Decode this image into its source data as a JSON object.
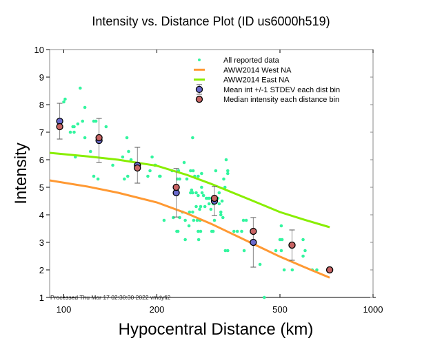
{
  "chart_data": {
    "type": "scatter",
    "title": "Intensity vs. Distance Plot (ID us6000h519)",
    "xlabel": "Hypocentral Distance (km)",
    "ylabel": "Intensity",
    "xscale": "log",
    "xlim": [
      90,
      1000
    ],
    "ylim": [
      1,
      10
    ],
    "xticks": [
      100,
      200,
      500,
      1000
    ],
    "xtick_labels": [
      "100",
      "200",
      "500",
      "1000"
    ],
    "yticks": [
      1,
      2,
      3,
      4,
      5,
      6,
      7,
      8,
      9,
      10
    ],
    "ytick_labels": [
      "1",
      "2",
      "3",
      "4",
      "5",
      "6",
      "7",
      "8",
      "9",
      "10"
    ],
    "legend_position": "top-right",
    "legend": [
      {
        "label": "All reported data",
        "kind": "dot"
      },
      {
        "label": "AWW2014 West NA",
        "kind": "line-west"
      },
      {
        "label": "AWW2014 East NA",
        "kind": "line-east"
      },
      {
        "label": "Mean int +/-1 STDEV each dist bin",
        "kind": "mean"
      },
      {
        "label": "Median intensity each distance bin",
        "kind": "median"
      }
    ],
    "footnote": "Processed Thu Mar 17 02:30:30 2022 vmdyfi2",
    "colors": {
      "data": "#33f59f",
      "west": "#ff9933",
      "east": "#88ee00",
      "mean": "#6a6acc",
      "median": "#c86464"
    },
    "all_reported_data": [
      [
        113,
        8.6
      ],
      [
        101,
        8.2
      ],
      [
        100,
        8.1
      ],
      [
        117,
        7.9
      ],
      [
        111,
        7.3
      ],
      [
        115,
        7.4
      ],
      [
        107,
        7.2
      ],
      [
        108,
        7.2
      ],
      [
        105,
        7.0
      ],
      [
        108,
        7.0
      ],
      [
        117,
        6.8
      ],
      [
        125,
        7.4
      ],
      [
        127,
        7.4
      ],
      [
        137,
        7.2
      ],
      [
        122,
        6.3
      ],
      [
        109,
        6.1
      ],
      [
        125,
        5.4
      ],
      [
        129,
        5.3
      ],
      [
        160,
        6.8
      ],
      [
        162,
        6.3
      ],
      [
        155,
        6.1
      ],
      [
        165,
        6.0
      ],
      [
        144,
        5.8
      ],
      [
        193,
        6.1
      ],
      [
        198,
        5.8
      ],
      [
        157,
        5.3
      ],
      [
        161,
        5.4
      ],
      [
        187,
        5.4
      ],
      [
        204,
        5.4
      ],
      [
        224,
        5.6
      ],
      [
        235,
        5.6
      ],
      [
        245,
        5.9
      ],
      [
        261,
        6.8
      ],
      [
        257,
        5.6
      ],
      [
        262,
        5.6
      ],
      [
        205,
        5.4
      ],
      [
        190,
        5.6
      ],
      [
        197,
        5.8
      ],
      [
        237,
        5.3
      ],
      [
        335,
        6.0
      ],
      [
        339,
        5.6
      ],
      [
        339,
        5.5
      ],
      [
        310,
        5.6
      ],
      [
        279,
        5.5
      ],
      [
        272,
        5.4
      ],
      [
        265,
        5.4
      ],
      [
        329,
        5.3
      ],
      [
        332,
        5.0
      ],
      [
        233,
        5.3
      ],
      [
        250,
        5.3
      ],
      [
        279,
        5.0
      ],
      [
        259,
        4.9
      ],
      [
        257,
        4.8
      ],
      [
        261,
        4.8
      ],
      [
        268,
        4.8
      ],
      [
        280,
        4.8
      ],
      [
        283,
        4.7
      ],
      [
        272,
        4.7
      ],
      [
        289,
        4.6
      ],
      [
        293,
        4.6
      ],
      [
        296,
        4.6
      ],
      [
        303,
        4.5
      ],
      [
        315,
        4.6
      ],
      [
        318,
        4.8
      ],
      [
        325,
        4.5
      ],
      [
        318,
        4.4
      ],
      [
        295,
        4.4
      ],
      [
        304,
        4.4
      ],
      [
        286,
        4.3
      ],
      [
        277,
        4.3
      ],
      [
        268,
        4.3
      ],
      [
        275,
        4.2
      ],
      [
        299,
        4.2
      ],
      [
        322,
        4.1
      ],
      [
        322,
        4.0
      ],
      [
        327,
        3.9
      ],
      [
        242,
        4.1
      ],
      [
        255,
        4.1
      ],
      [
        261,
        4.1
      ],
      [
        226,
        3.9
      ],
      [
        237,
        3.9
      ],
      [
        211,
        3.8
      ],
      [
        247,
        3.8
      ],
      [
        263,
        3.8
      ],
      [
        270,
        3.8
      ],
      [
        276,
        3.8
      ],
      [
        307,
        3.8
      ],
      [
        254,
        3.6
      ],
      [
        232,
        3.4
      ],
      [
        234,
        3.4
      ],
      [
        272,
        3.4
      ],
      [
        277,
        3.4
      ],
      [
        301,
        3.4
      ],
      [
        304,
        3.4
      ],
      [
        355,
        3.4
      ],
      [
        364,
        3.4
      ],
      [
        376,
        3.4
      ],
      [
        247,
        3.1
      ],
      [
        273,
        3.1
      ],
      [
        381,
        3.8
      ],
      [
        389,
        3.8
      ],
      [
        333,
        2.7
      ],
      [
        339,
        2.7
      ],
      [
        383,
        2.7
      ],
      [
        431,
        2.2
      ],
      [
        445,
        1.0
      ],
      [
        505,
        3.6
      ],
      [
        500,
        3.1
      ],
      [
        508,
        3.1
      ],
      [
        505,
        2.7
      ],
      [
        485,
        2.7
      ],
      [
        516,
        2.0
      ],
      [
        548,
        2.0
      ],
      [
        594,
        3.1
      ],
      [
        603,
        2.7
      ],
      [
        594,
        2.5
      ],
      [
        636,
        2.0
      ],
      [
        658,
        2.0
      ]
    ],
    "aww2014_west_na": {
      "x": [
        90,
        120,
        150,
        200,
        250,
        300,
        400,
        500,
        600,
        724
      ],
      "y": [
        5.25,
        5.02,
        4.8,
        4.45,
        4.05,
        3.67,
        3.0,
        2.48,
        2.1,
        1.72
      ]
    },
    "aww2014_east_na": {
      "x": [
        90,
        120,
        150,
        200,
        250,
        300,
        400,
        500,
        600,
        724
      ],
      "y": [
        6.25,
        6.12,
        6.0,
        5.78,
        5.45,
        5.12,
        4.55,
        4.1,
        3.82,
        3.55
      ]
    },
    "bins": {
      "distance": [
        97,
        130,
        173,
        231,
        307,
        410,
        547,
        724
      ],
      "mean": [
        7.4,
        6.7,
        5.8,
        4.8,
        4.5,
        3.0,
        2.9,
        2.0
      ],
      "median": [
        7.2,
        6.8,
        5.7,
        5.0,
        4.6,
        3.4,
        2.9,
        2.0
      ],
      "stdev": [
        0.65,
        0.8,
        0.65,
        0.88,
        0.53,
        0.9,
        0.55,
        0
      ]
    }
  }
}
